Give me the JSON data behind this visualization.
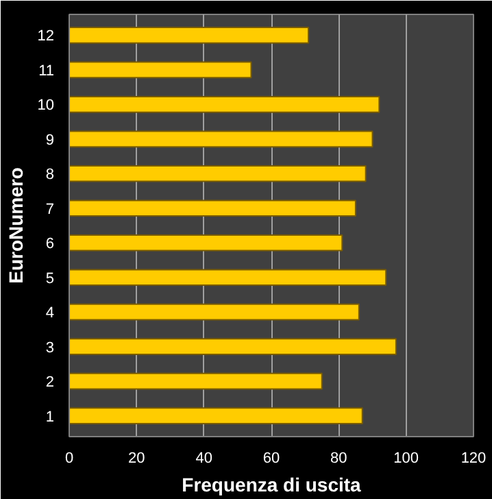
{
  "chart_data": {
    "type": "bar",
    "orientation": "horizontal",
    "xlabel": "Frequenza di uscita",
    "ylabel": "EuroNumero",
    "categories": [
      "12",
      "11",
      "10",
      "9",
      "8",
      "7",
      "6",
      "5",
      "4",
      "3",
      "2",
      "1"
    ],
    "values": [
      71,
      54,
      92,
      90,
      88,
      85,
      81,
      94,
      86,
      97,
      75,
      87
    ],
    "color": "#ffcc00",
    "xlim": [
      0,
      120
    ],
    "xticks": [
      0,
      20,
      40,
      60,
      80,
      100,
      120
    ],
    "grid": "x"
  }
}
